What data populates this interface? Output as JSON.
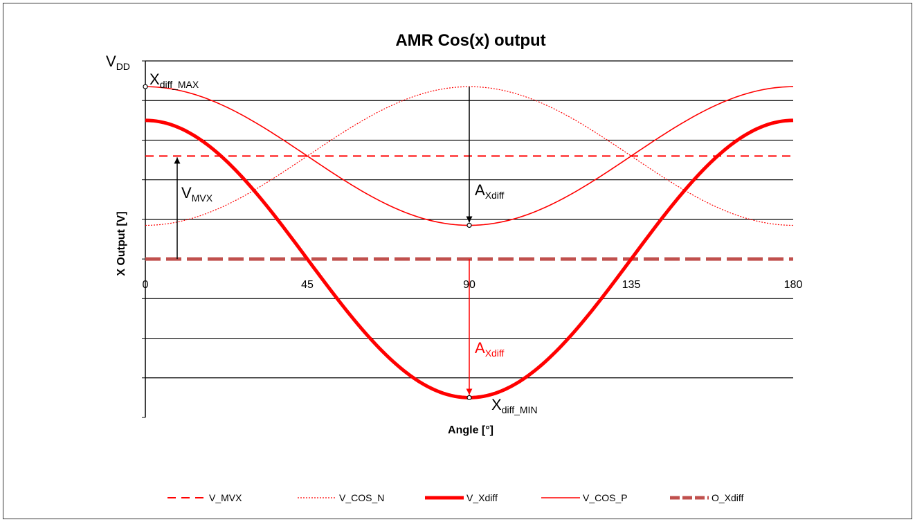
{
  "chart_data": {
    "type": "line",
    "title": "AMR Cos(x) output",
    "xlabel": "Angle [°]",
    "ylabel": "X Output [V]",
    "xlim": [
      0,
      180
    ],
    "ylim": [
      -4,
      5
    ],
    "x_ticks": [
      "0",
      "45",
      "90",
      "135",
      "180"
    ],
    "grid": true,
    "legend_position": "bottom",
    "series": [
      {
        "name": "V_MVX",
        "style": "dashed",
        "color": "#ff0000",
        "x": [
          0,
          180
        ],
        "y": [
          2.6,
          2.6
        ]
      },
      {
        "name": "V_COS_N",
        "style": "dotted",
        "color": "#ff0000",
        "x": [
          0,
          22.5,
          45,
          67.5,
          90,
          112.5,
          135,
          157.5,
          180
        ],
        "y": [
          0.85,
          1.4,
          2.6,
          3.8,
          4.35,
          3.8,
          2.6,
          1.4,
          0.85
        ]
      },
      {
        "name": "V_Xdiff",
        "style": "thick",
        "color": "#ff0000",
        "x": [
          0,
          22.5,
          45,
          67.5,
          90,
          112.5,
          135,
          157.5,
          180
        ],
        "y": [
          3.5,
          2.47,
          0,
          -2.47,
          -3.5,
          -2.47,
          0,
          2.47,
          3.5
        ]
      },
      {
        "name": "V_COS_P",
        "style": "solid",
        "color": "#ff0000",
        "x": [
          0,
          22.5,
          45,
          67.5,
          90,
          112.5,
          135,
          157.5,
          180
        ],
        "y": [
          4.35,
          3.8,
          2.6,
          1.4,
          0.85,
          1.4,
          2.6,
          3.8,
          4.35
        ]
      },
      {
        "name": "O_Xdiff",
        "style": "thick-dashed",
        "color": "#c0504d",
        "x": [
          0,
          180
        ],
        "y": [
          0,
          0
        ]
      }
    ],
    "annotations": {
      "vdd": {
        "main": "V",
        "sub": "DD"
      },
      "xdiff_max": {
        "main": "X",
        "sub": "diff_MAX"
      },
      "xdiff_min": {
        "main": "X",
        "sub": "diff_MIN"
      },
      "vmvx": {
        "main": "V",
        "sub": "MVX"
      },
      "axdiff_upper": {
        "main": "A",
        "sub": "Xdiff"
      },
      "axdiff_lower": {
        "main": "A",
        "sub": "Xdiff"
      }
    }
  }
}
